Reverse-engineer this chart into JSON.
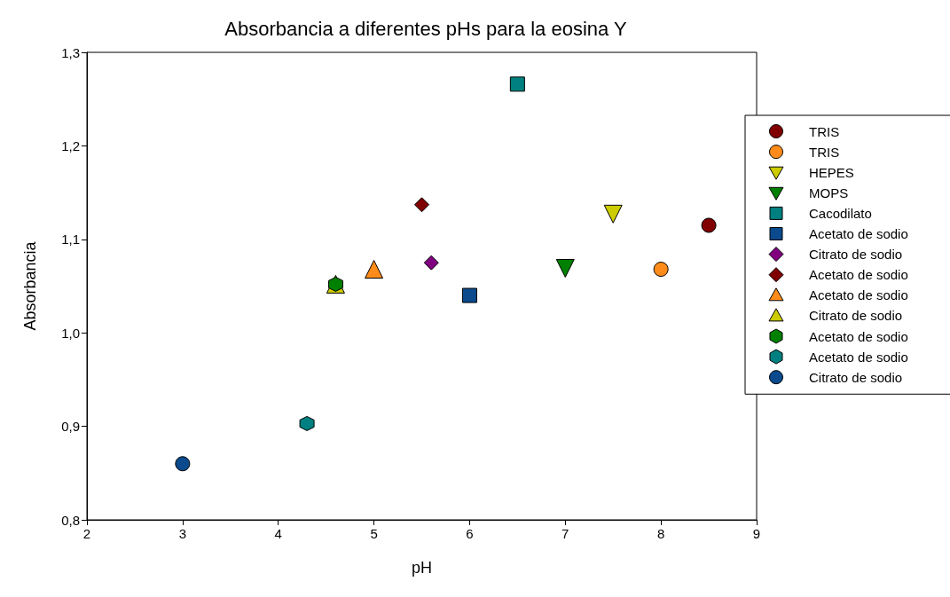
{
  "chart_data": {
    "type": "scatter",
    "title": "Absorbancia a diferentes pHs para la eosina Y",
    "xlabel": "pH",
    "ylabel": "Absorbancia",
    "xlim": [
      2,
      9
    ],
    "xticks": [
      2,
      3,
      4,
      5,
      6,
      7,
      8,
      9
    ],
    "ylim": [
      0.8,
      1.3
    ],
    "yticks": [
      {
        "value": 0.8,
        "label": "0,8"
      },
      {
        "value": 0.9,
        "label": "0,9"
      },
      {
        "value": 1.0,
        "label": "1,0"
      },
      {
        "value": 1.1,
        "label": "1,1"
      },
      {
        "value": 1.2,
        "label": "1,2"
      },
      {
        "value": 1.3,
        "label": "1,3"
      }
    ],
    "grid": false,
    "legend": "right",
    "series": [
      {
        "name": "TRIS",
        "color": "#800000",
        "marker": "circle",
        "x": [
          8.5
        ],
        "values": [
          1.115
        ]
      },
      {
        "name": "TRIS",
        "color": "#ff8c1a",
        "marker": "circle",
        "x": [
          8
        ],
        "values": [
          1.068
        ]
      },
      {
        "name": "HEPES",
        "color": "#cccc00",
        "marker": "triangle-down",
        "x": [
          7.5
        ],
        "values": [
          1.127
        ]
      },
      {
        "name": "MOPS",
        "color": "#008000",
        "marker": "triangle-down",
        "x": [
          7
        ],
        "values": [
          1.069
        ]
      },
      {
        "name": "Cacodilato",
        "color": "#008080",
        "marker": "square",
        "x": [
          6.5
        ],
        "values": [
          1.266
        ]
      },
      {
        "name": "Acetato de sodio",
        "color": "#0b4a8c",
        "marker": "square",
        "x": [
          6
        ],
        "values": [
          1.04
        ]
      },
      {
        "name": "Citrato de sodio",
        "color": "#800080",
        "marker": "diamond",
        "x": [
          5.6
        ],
        "values": [
          1.075
        ]
      },
      {
        "name": "Acetato de sodio",
        "color": "#800000",
        "marker": "diamond",
        "x": [
          5.5
        ],
        "values": [
          1.137
        ]
      },
      {
        "name": "Acetato de sodio",
        "color": "#ff8c1a",
        "marker": "triangle",
        "x": [
          5
        ],
        "values": [
          1.068
        ]
      },
      {
        "name": "Citrato de sodio",
        "color": "#cccc00",
        "marker": "triangle",
        "x": [
          4.6
        ],
        "values": [
          1.052
        ]
      },
      {
        "name": "Acetato de sodio",
        "color": "#008000",
        "x": [
          4.6
        ],
        "values": [
          1.052
        ]
      },
      {
        "name": "Acetato de sodio",
        "color": "#008080",
        "x": [
          4.3
        ],
        "values": [
          0.903
        ]
      },
      {
        "name": "Citrato de sodio",
        "color": "#0b4a8c",
        "marker": "circle",
        "x": [
          3
        ],
        "values": [
          0.86
        ]
      }
    ]
  }
}
